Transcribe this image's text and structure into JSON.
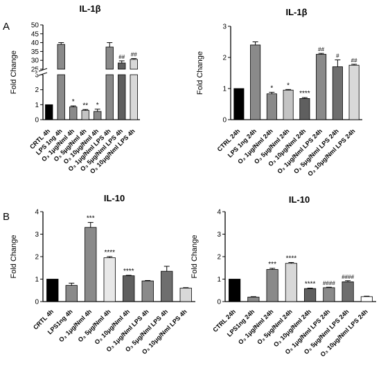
{
  "panel_labels": [
    "A",
    "B"
  ],
  "chart_data": [
    {
      "type": "bar",
      "title": "IL-1β",
      "ylabel": "Fold Change",
      "xlabel": "",
      "categories": [
        "CRTL 4h",
        "LPS 1ng 4h",
        "O₃ 1μg/Nml 4h",
        "O₃ 5μg/Nml 4h",
        "O₃ 10μg/Nml 4h",
        "O₃ 1μg/Nml LPS 4h",
        "O₃ 5μg/Nml LPS 4h",
        "O₃ 10μg/Nml LPS 4h"
      ],
      "values": [
        1.0,
        39.0,
        0.85,
        0.62,
        0.55,
        37.5,
        28.5,
        30.5
      ],
      "errors": [
        0,
        1.0,
        0.07,
        0.06,
        0.15,
        2.5,
        1.2,
        0.5
      ],
      "colors": [
        "#000000",
        "#8a8a8a",
        "#8a8a8a",
        "#c4c4c4",
        "#8a8a8a",
        "#8a8a8a",
        "#5f5f5f",
        "#d8d8d8"
      ],
      "annotations": [
        "",
        "",
        "*",
        "**",
        "*",
        "",
        "##",
        "##"
      ],
      "axis_break": {
        "lower": [
          0,
          3
        ],
        "upper": [
          25,
          50
        ]
      },
      "yticks_lower": [
        "0",
        "1",
        "2",
        "3"
      ],
      "yticks_upper": [
        "25",
        "30",
        "35",
        "40",
        "45",
        "50"
      ],
      "grid": false
    },
    {
      "type": "bar",
      "title": "IL-1β",
      "ylabel": "Fold Change",
      "xlabel": "",
      "categories": [
        "CTRL 24h",
        "LPS 1ng 24h",
        "O₃ 1μg/Nml 24h",
        "O₃ 5μg/Nml 24h",
        "O₃ 10μg/Nml 24h",
        "O₃ 1μg/Nml LPS 24h",
        "O₃ 5μg/Nml LPS 24h",
        "O₃ 10μg/Nml LPS 24h"
      ],
      "values": [
        1.0,
        2.4,
        0.83,
        0.95,
        0.68,
        2.1,
        1.7,
        1.75
      ],
      "errors": [
        0,
        0.1,
        0.05,
        0.02,
        0.03,
        0.03,
        0.22,
        0.03
      ],
      "colors": [
        "#000000",
        "#8a8a8a",
        "#8a8a8a",
        "#c4c4c4",
        "#5f5f5f",
        "#8a8a8a",
        "#6e6e6e",
        "#d8d8d8"
      ],
      "annotations": [
        "",
        "",
        "*",
        "*",
        "****",
        "##",
        "#",
        "##"
      ],
      "ylim": [
        0,
        3
      ],
      "yticks": [
        "0",
        "1",
        "2",
        "3"
      ],
      "grid": false
    },
    {
      "type": "bar",
      "title": "IL-10",
      "ylabel": "Fold Change",
      "xlabel": "",
      "categories": [
        "CRTL 4h",
        "LPS1ng 4h",
        "O₃ 1μg/Nml 4h",
        "O₃ 5μg/Nml 4h",
        "O₃ 10μg/Nml 4h",
        "O₃ 1μg/Nml LPS 4h",
        "O₃ 5μg/Nml LPS 4h",
        "O₃ 10μg/Nml LPS 4h"
      ],
      "values": [
        1.0,
        0.72,
        3.3,
        1.95,
        1.15,
        0.92,
        1.35,
        0.6
      ],
      "errors": [
        0,
        0.1,
        0.22,
        0.05,
        0.02,
        0.02,
        0.22,
        0.02
      ],
      "colors": [
        "#000000",
        "#8a8a8a",
        "#8a8a8a",
        "#e8e8e8",
        "#5f5f5f",
        "#8a8a8a",
        "#6e6e6e",
        "#d8d8d8"
      ],
      "annotations": [
        "",
        "",
        "***",
        "****",
        "****",
        "",
        "",
        ""
      ],
      "ylim": [
        0,
        4
      ],
      "yticks": [
        "0",
        "1",
        "2",
        "3",
        "4"
      ],
      "grid": false
    },
    {
      "type": "bar",
      "title": "IL-10",
      "ylabel": "Fold Change",
      "xlabel": "",
      "categories": [
        "CTRL 24h",
        "LPS1ng 24h",
        "O₃ 1μg/Nml 24h",
        "O₃ 5μg/Nml 24h",
        "O₃ 10μg/Nml 24h",
        "O₃ 1μg/Nml LPS 24h",
        "O₃ 5μg/Nml LPS 24h",
        "O₃ 10μg/Nml LPS 24h"
      ],
      "values": [
        1.0,
        0.2,
        1.43,
        1.7,
        0.58,
        0.62,
        0.88,
        0.22
      ],
      "errors": [
        0,
        0.02,
        0.05,
        0.04,
        0.02,
        0.02,
        0.05,
        0.02
      ],
      "colors": [
        "#000000",
        "#8a8a8a",
        "#8a8a8a",
        "#d8d8d8",
        "#5f5f5f",
        "#8a8a8a",
        "#6e6e6e",
        "#ffffff"
      ],
      "annotations": [
        "",
        "",
        "***",
        "****",
        "****",
        "####",
        "####",
        ""
      ],
      "ylim": [
        0,
        4
      ],
      "yticks": [
        "0",
        "1",
        "2",
        "3",
        "4"
      ],
      "grid": false
    }
  ]
}
